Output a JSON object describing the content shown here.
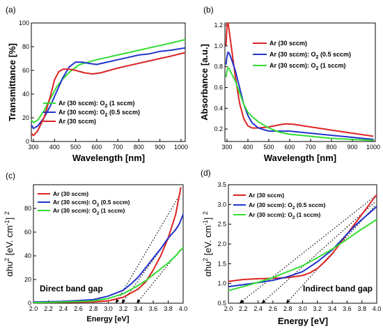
{
  "chart_data": [
    {
      "id": "a",
      "panel_label": "(a)",
      "type": "line",
      "xlabel": "Wavelength [nm]",
      "ylabel": "Transmittance [%]",
      "xlim": [
        290,
        1020
      ],
      "ylim": [
        0,
        100
      ],
      "xticks": [
        300,
        400,
        500,
        600,
        700,
        800,
        900,
        1000
      ],
      "yticks": [
        0,
        20,
        40,
        60,
        80,
        100
      ],
      "legend_position": "bottom-center",
      "series": [
        {
          "name": "Ar (30 sccm): O2 (1 sccm)",
          "label_main": "Ar (30 sccm): O",
          "label_sub": "2",
          "label_tail": " (1 sccm)",
          "color": "#33dd33",
          "points": [
            [
              290,
              18
            ],
            [
              300,
              16
            ],
            [
              320,
              18
            ],
            [
              350,
              26
            ],
            [
              380,
              36
            ],
            [
              410,
              46
            ],
            [
              440,
              53
            ],
            [
              480,
              60
            ],
            [
              520,
              65
            ],
            [
              560,
              67
            ],
            [
              600,
              69
            ],
            [
              650,
              71
            ],
            [
              700,
              73
            ],
            [
              750,
              75
            ],
            [
              800,
              77
            ],
            [
              850,
              79
            ],
            [
              900,
              81
            ],
            [
              950,
              83
            ],
            [
              1020,
              86
            ]
          ]
        },
        {
          "name": "Ar (30 sccm): O2 (0.5 sccm)",
          "label_main": "Ar (30 sccm): O",
          "label_sub": "2",
          "label_tail": " (0.5 sccm)",
          "color": "#2233cc",
          "points": [
            [
              290,
              14
            ],
            [
              300,
              11
            ],
            [
              320,
              13
            ],
            [
              350,
              20
            ],
            [
              380,
              30
            ],
            [
              410,
              42
            ],
            [
              440,
              54
            ],
            [
              470,
              63
            ],
            [
              500,
              67
            ],
            [
              530,
              67
            ],
            [
              560,
              66
            ],
            [
              600,
              65
            ],
            [
              650,
              67
            ],
            [
              700,
              69
            ],
            [
              750,
              71
            ],
            [
              800,
              73
            ],
            [
              850,
              74
            ],
            [
              900,
              76
            ],
            [
              950,
              77
            ],
            [
              1020,
              79
            ]
          ]
        },
        {
          "name": "Ar (30 sccm)",
          "label_main": "Ar (30 sccm)",
          "label_sub": "",
          "label_tail": "",
          "color": "#dd2222",
          "points": [
            [
              290,
              7
            ],
            [
              300,
              5
            ],
            [
              320,
              9
            ],
            [
              350,
              20
            ],
            [
              380,
              38
            ],
            [
              400,
              52
            ],
            [
              420,
              59
            ],
            [
              440,
              61
            ],
            [
              470,
              61
            ],
            [
              500,
              60
            ],
            [
              540,
              58
            ],
            [
              580,
              57
            ],
            [
              620,
              58
            ],
            [
              660,
              60
            ],
            [
              700,
              62
            ],
            [
              750,
              64
            ],
            [
              800,
              66
            ],
            [
              850,
              68
            ],
            [
              900,
              70
            ],
            [
              950,
              72
            ],
            [
              1020,
              75
            ]
          ]
        }
      ]
    },
    {
      "id": "b",
      "panel_label": "(b)",
      "type": "line",
      "xlabel": "Wavelength [nm]",
      "ylabel": "Absorbance [a.u.]",
      "xlim": [
        290,
        1010
      ],
      "ylim": [
        0.08,
        1.22
      ],
      "xticks": [
        300,
        400,
        500,
        600,
        700,
        800,
        900,
        1000
      ],
      "yticks": [
        0.2,
        0.4,
        0.6,
        0.8,
        1.0,
        1.2
      ],
      "ytick_labels": [
        "0.2",
        "0.4",
        "0.6",
        "0.8",
        "1.0",
        "1.2"
      ],
      "legend_position": "top-right",
      "series": [
        {
          "name": "Ar (30 sccm)",
          "label_main": "Ar (30 sccm)",
          "label_sub": "",
          "label_tail": "",
          "color": "#dd2222",
          "points": [
            [
              295,
              1.0
            ],
            [
              300,
              1.2
            ],
            [
              305,
              1.22
            ],
            [
              310,
              1.15
            ],
            [
              320,
              1.0
            ],
            [
              340,
              0.7
            ],
            [
              360,
              0.45
            ],
            [
              380,
              0.3
            ],
            [
              400,
              0.23
            ],
            [
              420,
              0.21
            ],
            [
              450,
              0.21
            ],
            [
              500,
              0.22
            ],
            [
              550,
              0.24
            ],
            [
              580,
              0.25
            ],
            [
              620,
              0.245
            ],
            [
              700,
              0.22
            ],
            [
              800,
              0.19
            ],
            [
              900,
              0.16
            ],
            [
              1000,
              0.13
            ]
          ]
        },
        {
          "name": "Ar (30 sccm): O2 (0.5 sccm)",
          "label_main": "Ar (30 sccm): O",
          "label_sub": "2",
          "label_tail": " (0.5 sccm)",
          "color": "#2233cc",
          "points": [
            [
              295,
              0.82
            ],
            [
              300,
              0.9
            ],
            [
              305,
              0.94
            ],
            [
              310,
              0.93
            ],
            [
              320,
              0.88
            ],
            [
              340,
              0.76
            ],
            [
              360,
              0.6
            ],
            [
              380,
              0.44
            ],
            [
              400,
              0.33
            ],
            [
              420,
              0.26
            ],
            [
              450,
              0.21
            ],
            [
              500,
              0.18
            ],
            [
              550,
              0.18
            ],
            [
              600,
              0.18
            ],
            [
              700,
              0.16
            ],
            [
              800,
              0.14
            ],
            [
              900,
              0.12
            ],
            [
              1000,
              0.1
            ]
          ]
        },
        {
          "name": "Ar (30 sccm): O2 (1 sccm)",
          "label_main": "Ar (30 sccm): O",
          "label_sub": "2",
          "label_tail": " (1 sccm)",
          "color": "#33dd33",
          "points": [
            [
              295,
              0.7
            ],
            [
              300,
              0.76
            ],
            [
              305,
              0.79
            ],
            [
              310,
              0.78
            ],
            [
              320,
              0.74
            ],
            [
              340,
              0.66
            ],
            [
              360,
              0.55
            ],
            [
              380,
              0.44
            ],
            [
              400,
              0.36
            ],
            [
              420,
              0.32
            ],
            [
              450,
              0.27
            ],
            [
              500,
              0.21
            ],
            [
              550,
              0.17
            ],
            [
              600,
              0.15
            ],
            [
              700,
              0.13
            ],
            [
              800,
              0.11
            ],
            [
              900,
              0.1
            ],
            [
              1000,
              0.09
            ]
          ]
        }
      ]
    },
    {
      "id": "c",
      "panel_label": "(c)",
      "type": "line",
      "xlabel": "Energy [eV]",
      "ylabel_main": "αhυ",
      "ylabel_sup": "2",
      "ylabel_bracket": " [eV. cm",
      "ylabel_sup2": "-1",
      "ylabel_close": "] ",
      "ylabel_sup3": "2",
      "xlim": [
        2.0,
        4.0
      ],
      "ylim": [
        0,
        100
      ],
      "xticks": [
        2.0,
        2.2,
        2.4,
        2.6,
        2.8,
        3.0,
        3.2,
        3.4,
        3.6,
        3.8,
        4.0
      ],
      "xtick_labels": [
        "2.0",
        "2.2",
        "2.4",
        "2.6",
        "2.8",
        "3.0",
        "3.2",
        "3.4",
        "3.6",
        "3.8",
        "4.0"
      ],
      "yticks": [
        0,
        20,
        40,
        60,
        80
      ],
      "annotation": "Direct band gap",
      "legend_position": "top-left",
      "series": [
        {
          "name": "Ar (30 sccm)",
          "label_main": "Ar (30 sccm)",
          "label_sub": "",
          "label_tail": "",
          "color": "#dd2222",
          "points": [
            [
              2.0,
              0.5
            ],
            [
              2.4,
              0.8
            ],
            [
              2.8,
              1.2
            ],
            [
              3.0,
              2
            ],
            [
              3.2,
              5
            ],
            [
              3.4,
              12
            ],
            [
              3.5,
              18
            ],
            [
              3.6,
              28
            ],
            [
              3.7,
              40
            ],
            [
              3.8,
              55
            ],
            [
              3.9,
              75
            ],
            [
              3.97,
              98
            ]
          ]
        },
        {
          "name": "Ar (30 sccm): O2 (0.5 sccm)",
          "label_main": "Ar (30 sccm): O",
          "label_sub": "2",
          "label_tail": " (0.5 sccm)",
          "color": "#2233cc",
          "points": [
            [
              2.0,
              1
            ],
            [
              2.4,
              1.5
            ],
            [
              2.8,
              3
            ],
            [
              3.0,
              6
            ],
            [
              3.2,
              11
            ],
            [
              3.3,
              16
            ],
            [
              3.4,
              22
            ],
            [
              3.5,
              30
            ],
            [
              3.6,
              38
            ],
            [
              3.7,
              46
            ],
            [
              3.8,
              55
            ],
            [
              3.9,
              62
            ],
            [
              3.95,
              67
            ],
            [
              4.0,
              75
            ]
          ]
        },
        {
          "name": "Ar (30 sccm): O2 (1 sccm)",
          "label_main": "Ar (30 sccm): O",
          "label_sub": "2",
          "label_tail": " (1 sccm)",
          "color": "#33dd33",
          "points": [
            [
              2.0,
              0.5
            ],
            [
              2.4,
              1
            ],
            [
              2.8,
              2
            ],
            [
              3.0,
              4
            ],
            [
              3.2,
              8
            ],
            [
              3.4,
              15
            ],
            [
              3.5,
              19
            ],
            [
              3.6,
              24
            ],
            [
              3.7,
              29
            ],
            [
              3.8,
              34
            ],
            [
              3.9,
              40
            ],
            [
              4.0,
              47
            ]
          ]
        }
      ],
      "tangents": [
        {
          "from": [
            3.96,
            92
          ],
          "to": [
            3.1,
            0
          ]
        },
        {
          "from": [
            3.96,
            68
          ],
          "to": [
            3.18,
            0
          ]
        },
        {
          "from": [
            3.96,
            45
          ],
          "to": [
            3.38,
            0
          ]
        }
      ]
    },
    {
      "id": "d",
      "panel_label": "(d)",
      "type": "line",
      "xlabel": "Energy [eV]",
      "ylabel_main": "αhυ",
      "ylabel_sup": "2",
      "ylabel_bracket": " [eV. cm",
      "ylabel_sup2": "-1",
      "ylabel_close": "] ",
      "ylabel_sup3": "2",
      "xlim": [
        2.0,
        4.0
      ],
      "ylim": [
        0.5,
        3.5
      ],
      "xticks": [
        2.0,
        2.2,
        2.4,
        2.6,
        2.8,
        3.0,
        3.2,
        3.4,
        3.6,
        3.8,
        4.0
      ],
      "xtick_labels": [
        "2.0",
        "2.2",
        "2.4",
        "2.6",
        "2.8",
        "3.0",
        "3.2",
        "3.4",
        "3.6",
        "3.8",
        "4.0"
      ],
      "yticks": [
        0.5,
        1.0,
        1.5,
        2.0,
        2.5,
        3.0,
        3.5
      ],
      "ytick_labels": [
        "0.5",
        "1.0",
        "1.5",
        "2.0",
        "2.5",
        "3.0",
        "3.5"
      ],
      "annotation": "Indirect band gap",
      "legend_position": "top-left",
      "series": [
        {
          "name": "Ar (30 sccm)",
          "label_main": "Ar (30 sccm)",
          "label_sub": "",
          "label_tail": "",
          "color": "#dd2222",
          "points": [
            [
              2.0,
              1.05
            ],
            [
              2.2,
              1.1
            ],
            [
              2.4,
              1.12
            ],
            [
              2.6,
              1.13
            ],
            [
              2.8,
              1.15
            ],
            [
              3.0,
              1.2
            ],
            [
              3.1,
              1.27
            ],
            [
              3.2,
              1.38
            ],
            [
              3.3,
              1.55
            ],
            [
              3.4,
              1.75
            ],
            [
              3.5,
              2.0
            ],
            [
              3.6,
              2.25
            ],
            [
              3.7,
              2.5
            ],
            [
              3.8,
              2.75
            ],
            [
              3.9,
              3.0
            ],
            [
              4.0,
              3.25
            ]
          ]
        },
        {
          "name": "Ar (30 sccm): O2 (0.5 sccm)",
          "label_main": "Ar (30 sccm): O",
          "label_sub": "2",
          "label_tail": " (0.5 sccm)",
          "color": "#2233cc",
          "points": [
            [
              2.0,
              0.92
            ],
            [
              2.2,
              0.97
            ],
            [
              2.4,
              1.02
            ],
            [
              2.6,
              1.08
            ],
            [
              2.8,
              1.17
            ],
            [
              3.0,
              1.3
            ],
            [
              3.2,
              1.55
            ],
            [
              3.4,
              1.85
            ],
            [
              3.5,
              2.05
            ],
            [
              3.6,
              2.25
            ],
            [
              3.7,
              2.45
            ],
            [
              3.8,
              2.62
            ],
            [
              3.9,
              2.78
            ],
            [
              4.0,
              2.95
            ]
          ]
        },
        {
          "name": "Ar (30 sccm): O2 (1 sccm)",
          "label_main": "Ar (30 sccm): O",
          "label_sub": "2",
          "label_tail": " (1 sccm)",
          "color": "#33dd33",
          "points": [
            [
              2.0,
              0.82
            ],
            [
              2.2,
              0.92
            ],
            [
              2.4,
              1.03
            ],
            [
              2.6,
              1.15
            ],
            [
              2.8,
              1.3
            ],
            [
              3.0,
              1.45
            ],
            [
              3.2,
              1.65
            ],
            [
              3.4,
              1.87
            ],
            [
              3.6,
              2.12
            ],
            [
              3.8,
              2.38
            ],
            [
              4.0,
              2.62
            ]
          ]
        }
      ],
      "tangents": [
        {
          "from": [
            3.97,
            3.2
          ],
          "to": [
            2.15,
            0.5
          ]
        },
        {
          "from": [
            3.97,
            3.05
          ],
          "to": [
            2.45,
            0.5
          ]
        },
        {
          "from": [
            3.97,
            2.95
          ],
          "to": [
            2.78,
            0.5
          ]
        }
      ]
    }
  ]
}
